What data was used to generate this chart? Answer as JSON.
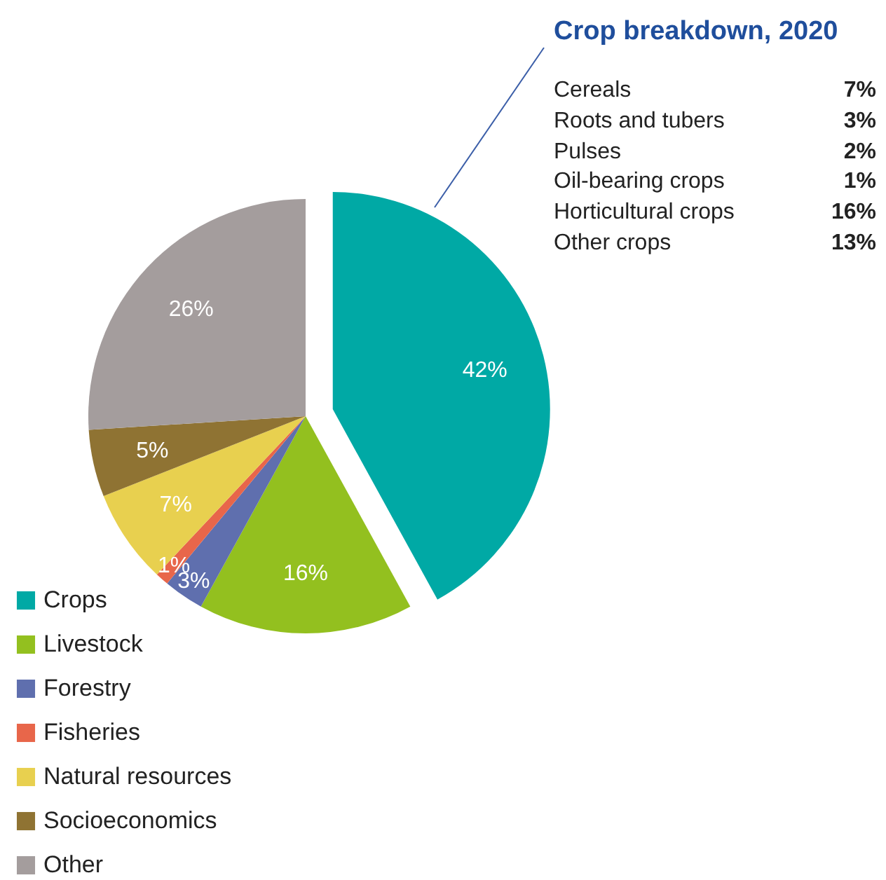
{
  "chart_data": [
    {
      "type": "pie",
      "categories": [
        "Crops",
        "Livestock",
        "Forestry",
        "Fisheries",
        "Natural resources",
        "Socioeconomics",
        "Other"
      ],
      "values": [
        42,
        16,
        3,
        1,
        7,
        5,
        26
      ],
      "colors": [
        "#00a9a5",
        "#93c01f",
        "#5f6fae",
        "#e8664a",
        "#e8d04f",
        "#8f7333",
        "#a49d9d"
      ],
      "value_labels": [
        "42%",
        "16%",
        "3%",
        "1%",
        "7%",
        "5%",
        "26%"
      ],
      "legend": "bottom left"
    },
    {
      "type": "other",
      "title": "Crop breakdown, 2020",
      "categories": [
        "Cereals",
        "Roots and tubers",
        "Pulses",
        "Oil-bearing crops",
        "Horticultural crops",
        "Other crops"
      ],
      "value_labels": [
        "7%",
        "3%",
        "2%",
        "1%",
        "16%",
        "13%"
      ]
    }
  ]
}
